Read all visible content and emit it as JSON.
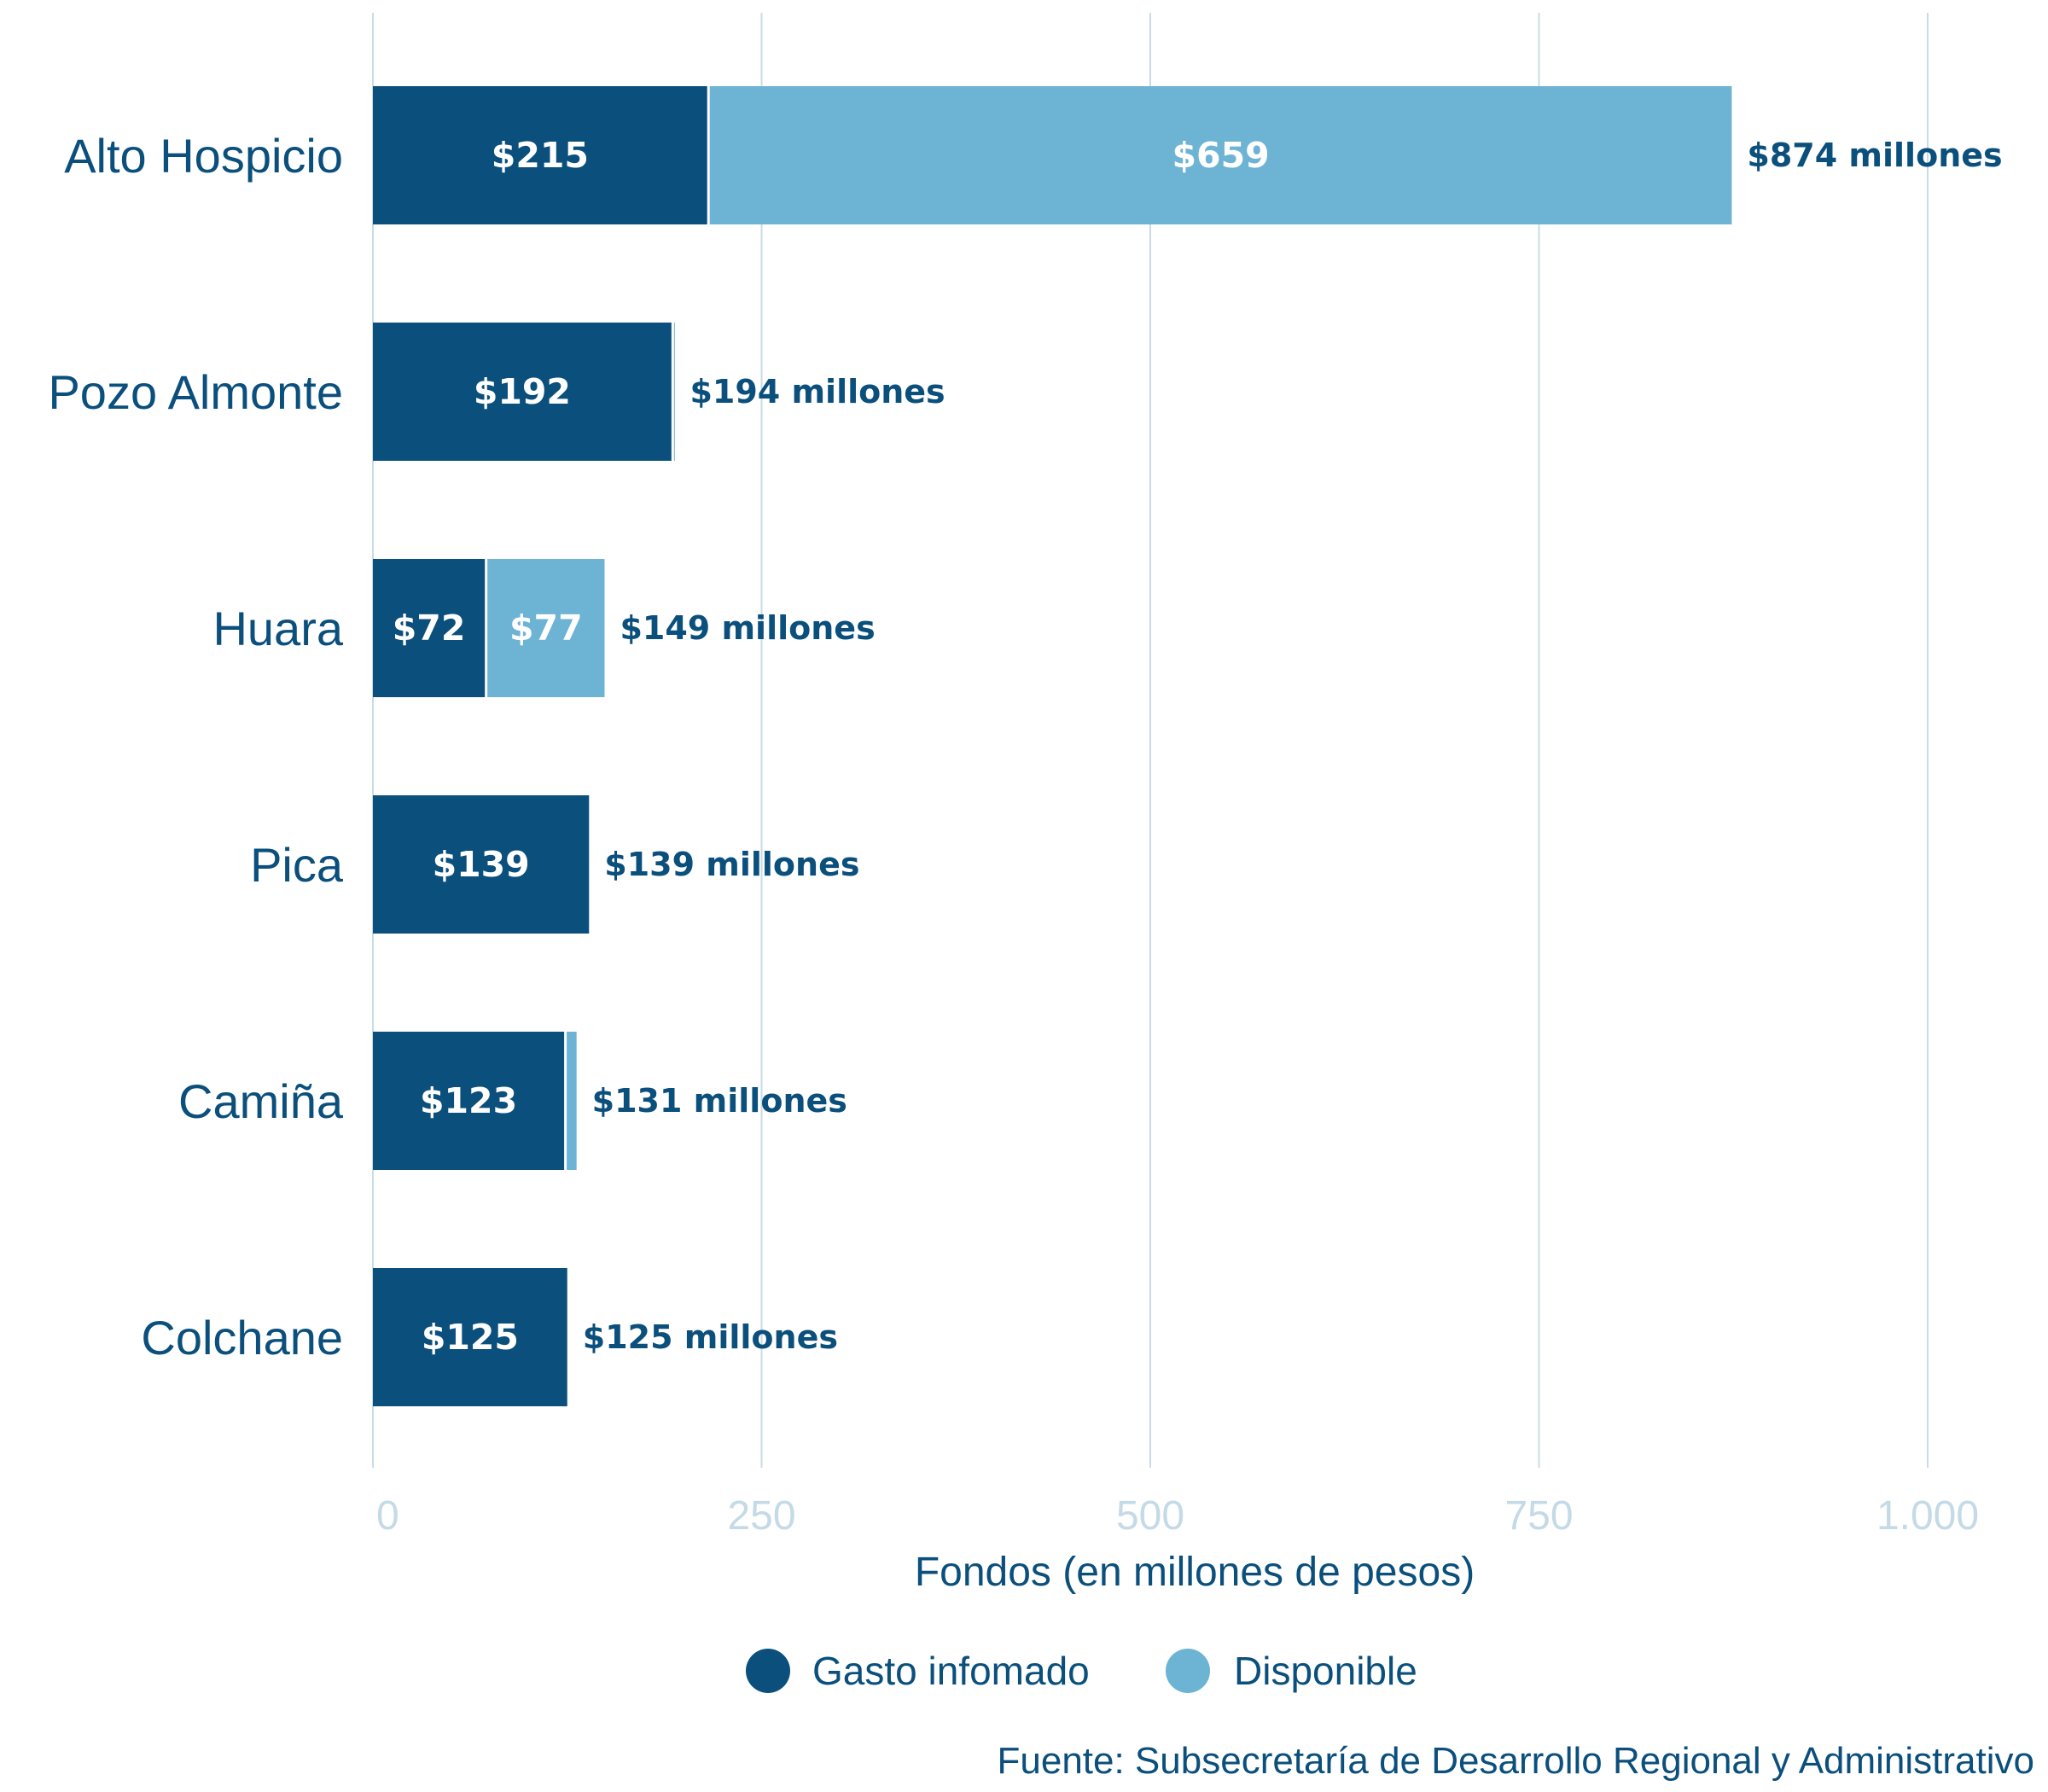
{
  "chart_data": {
    "type": "bar",
    "orientation": "horizontal",
    "stacked": true,
    "categories": [
      "Alto Hospicio",
      "Pozo Almonte",
      "Huara",
      "Pica",
      "Camiña",
      "Colchane"
    ],
    "series": [
      {
        "name": "Gasto infomado",
        "color": "#0b4f7c",
        "values": [
          215,
          192,
          72,
          139,
          123,
          125
        ],
        "labels": [
          "$215",
          "$192",
          "$72",
          "$139",
          "$123",
          "$125"
        ]
      },
      {
        "name": "Disponible",
        "color": "#6db3d4",
        "values": [
          659,
          2,
          77,
          0,
          8,
          0
        ],
        "labels": [
          "$659",
          "",
          "$77",
          "",
          "",
          ""
        ]
      }
    ],
    "totals": [
      874,
      194,
      149,
      139,
      131,
      125
    ],
    "total_labels": [
      "$874 millones",
      "$194 millones",
      "$149 millones",
      "$139 millones",
      "$131 millones",
      "$125 millones"
    ],
    "xlim": [
      0,
      1000
    ],
    "xticks": [
      0,
      250,
      500,
      750,
      1000
    ],
    "xtick_labels": [
      "0",
      "250",
      "500",
      "750",
      "1.000"
    ],
    "xlabel": "Fondos (en millones de pesos)",
    "ylabel": "",
    "grid": true,
    "legend_position": "bottom-center",
    "source": "Fuente: Subsecretaría de Desarrollo Regional y Administrativo"
  },
  "colors": {
    "text_dark": "#0b4f7c",
    "tick_text": "#c4dae6",
    "grid": "#c8dce6",
    "inbar_text": "#ffffff"
  }
}
